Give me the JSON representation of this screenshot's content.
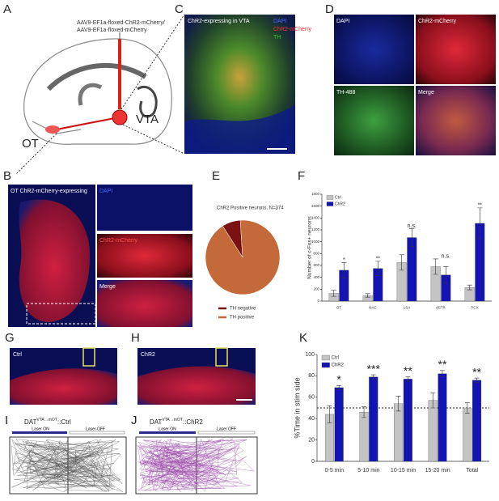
{
  "figure": {
    "panel_labels": [
      "A",
      "B",
      "C",
      "D",
      "E",
      "F",
      "G",
      "H",
      "I",
      "J",
      "K"
    ],
    "a": {
      "virus_line1": "AAV9-EF1a-floxed-ChR2-mCherry/",
      "virus_line2": "AAV9-EF1a-floxed-mCherry",
      "vta": "VTA",
      "ot": "OT"
    },
    "b": {
      "title": "OT ChR2-mCherry-expressing",
      "channels": [
        "DAPI",
        "ChR2-mCherry",
        "Merge"
      ]
    },
    "c": {
      "title": "ChR2-expressing in VTA",
      "channels": [
        "DAPI",
        "ChR2-mCherry",
        "TH"
      ]
    },
    "d": {
      "channels": [
        "DAPI",
        "ChR2-mCherry",
        "TH-488",
        "Merge"
      ]
    },
    "g": {
      "label": "Ctrl"
    },
    "h": {
      "label": "ChR2"
    },
    "i": {
      "title_main": "DAT",
      "title_sup": "VTA→mOT",
      "title_suffix": "::Ctrl",
      "laser_on": "Laser ON",
      "laser_off": "Laser OFF"
    },
    "j": {
      "title_main": "DAT",
      "title_sup": "VTA→mOT",
      "title_suffix": "::ChR2",
      "laser_on": "Laser ON",
      "laser_off": "Laser OFF"
    }
  },
  "chart_data": [
    {
      "type": "pie",
      "title": "ChR2 Positive neurons, N=374",
      "categories": [
        "TH negative",
        "TH positive"
      ],
      "values": [
        8,
        92
      ],
      "colors": [
        "#7a1212",
        "#c46a3a"
      ]
    },
    {
      "type": "bar",
      "ylabel": "Number of c-Fos+ neurons",
      "categories": [
        "OT",
        "NAC",
        "LSA",
        "dSTR",
        "PCX"
      ],
      "series": [
        {
          "name": "Ctrl",
          "color": "#c4c4c4",
          "values": [
            130,
            95,
            650,
            580,
            230
          ],
          "errors": [
            50,
            30,
            130,
            130,
            40
          ]
        },
        {
          "name": "ChR2",
          "color": "#1414b4",
          "values": [
            520,
            550,
            1070,
            440,
            1310
          ],
          "errors": [
            130,
            120,
            150,
            140,
            260
          ]
        }
      ],
      "annotations": [
        "*",
        "**",
        "n.s.",
        "n.s.",
        "**"
      ],
      "ylim": [
        0,
        1800
      ],
      "yticks": [
        0,
        200,
        400,
        600,
        800,
        1000,
        1200,
        1400,
        1600,
        1800
      ]
    },
    {
      "type": "bar",
      "ylabel": "%Time in stim side",
      "categories": [
        "0-5 min",
        "5-10 min",
        "10-15 min",
        "15-20 min",
        "Total"
      ],
      "series": [
        {
          "name": "Ctrl",
          "color": "#c4c4c4",
          "values": [
            44,
            46,
            54,
            57,
            50
          ],
          "errors": [
            8,
            5,
            7,
            7,
            5
          ]
        },
        {
          "name": "ChR2",
          "color": "#1414b4",
          "values": [
            69,
            79,
            77,
            82,
            76
          ],
          "errors": [
            2,
            2,
            2,
            3,
            2
          ]
        }
      ],
      "annotations": [
        "*",
        "***",
        "**",
        "**",
        "**"
      ],
      "reference_line": 50,
      "ylim": [
        0,
        100
      ],
      "yticks": [
        0,
        20,
        40,
        60,
        80,
        100
      ]
    }
  ]
}
